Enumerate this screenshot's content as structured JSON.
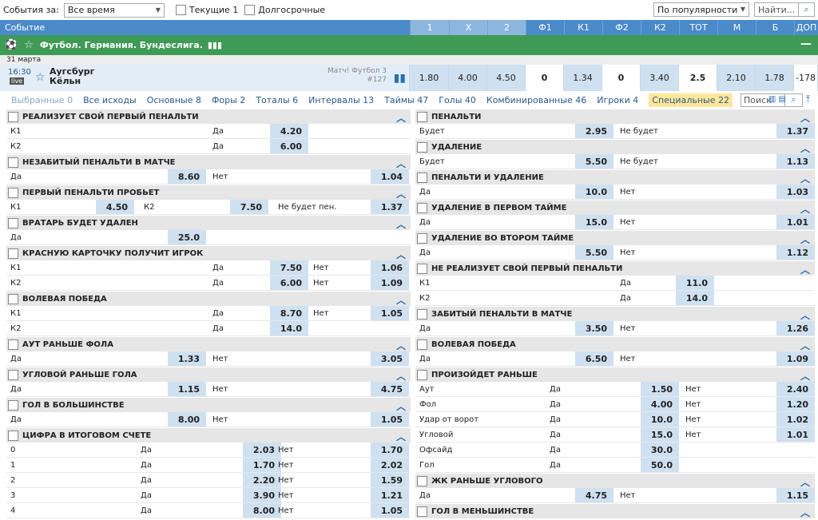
{
  "filter": {
    "label": "События за:",
    "period": "Все время",
    "current": "Текущие 1",
    "longterm": "Долгосрочные",
    "sort": "По популярности",
    "search_placeholder": "Найти..."
  },
  "header": {
    "event": "Событие",
    "cols": [
      "1",
      "X",
      "2",
      "Ф1",
      "К1",
      "Ф2",
      "К2",
      "ТОТ",
      "М",
      "Б",
      "ДОП"
    ]
  },
  "league": "Футбол. Германия. Бундеслига.",
  "date": "31 марта",
  "match": {
    "time": "16:30",
    "live": "live",
    "team1": "Аугсбург",
    "team2": "Кёльн",
    "info1": "Матч! Футбол 3",
    "info2": "#127",
    "odds": [
      "1.80",
      "4.00",
      "4.50",
      "0",
      "1.34",
      "0",
      "3.40",
      "2.5",
      "2.10",
      "1.78",
      "-178"
    ]
  },
  "tabs": [
    "Выбранные 0",
    "Все исходы",
    "Основные 8",
    "Форы 2",
    "Тоталы 6",
    "Интервалы 13",
    "Таймы 47",
    "Голы 40",
    "Комбинированные 46",
    "Игроки 4",
    "Специальные 22"
  ],
  "tab_search": "Поиск по",
  "left": [
    {
      "title": "РЕАЛИЗУЕТ СВОЙ ПЕРВЫЙ ПЕНАЛЬТИ",
      "rows": [
        [
          "К1",
          "Да",
          "4.20"
        ],
        [
          "К2",
          "Да",
          "6.00"
        ]
      ],
      "t": "a"
    },
    {
      "title": "НЕЗАБИТЫЙ ПЕНАЛЬТИ В МАТЧЕ",
      "rows": [
        [
          "Да",
          "8.60",
          "Нет",
          "1.04"
        ]
      ],
      "t": "b"
    },
    {
      "title": "ПЕРВЫЙ ПЕНАЛЬТИ ПРОБЬЕТ",
      "rows": [
        [
          "К1",
          "4.50",
          "К2",
          "7.50",
          "Не будет пен.",
          "1.37"
        ]
      ],
      "t": "c"
    },
    {
      "title": "ВРАТАРЬ БУДЕТ УДАЛЕН",
      "rows": [
        [
          "Да",
          "25.0"
        ]
      ],
      "t": "d"
    },
    {
      "title": "КРАСНУЮ КАРТОЧКУ ПОЛУЧИТ ИГРОК",
      "rows": [
        [
          "К1",
          "Да",
          "7.50",
          "Нет",
          "1.06"
        ],
        [
          "К2",
          "Да",
          "6.00",
          "Нет",
          "1.09"
        ]
      ],
      "t": "e"
    },
    {
      "title": "ВОЛЕВАЯ ПОБЕДА",
      "rows": [
        [
          "К1",
          "Да",
          "8.70",
          "Нет",
          "1.05"
        ],
        [
          "К2",
          "Да",
          "14.0"
        ]
      ],
      "t": "e"
    },
    {
      "title": "АУТ РАНЬШЕ ФОЛА",
      "rows": [
        [
          "Да",
          "1.33",
          "Нет",
          "3.05"
        ]
      ],
      "t": "b"
    },
    {
      "title": "УГЛОВОЙ РАНЬШЕ ГОЛА",
      "rows": [
        [
          "Да",
          "1.15",
          "Нет",
          "4.75"
        ]
      ],
      "t": "b"
    },
    {
      "title": "ГОЛ В БОЛЬШИНСТВЕ",
      "rows": [
        [
          "Да",
          "8.00",
          "Нет",
          "1.05"
        ]
      ],
      "t": "b"
    },
    {
      "title": "ЦИФРА В ИТОГОВОМ СЧЕТЕ",
      "rows": [
        [
          "0",
          "Да",
          "2.03",
          "Нет",
          "1.70"
        ],
        [
          "1",
          "Да",
          "1.70",
          "Нет",
          "2.02"
        ],
        [
          "2",
          "Да",
          "2.20",
          "Нет",
          "1.59"
        ],
        [
          "3",
          "Да",
          "3.90",
          "Нет",
          "1.21"
        ],
        [
          "4",
          "Да",
          "8.00",
          "Нет",
          "1.05"
        ]
      ],
      "t": "f"
    }
  ],
  "right": [
    {
      "title": "ПЕНАЛЬТИ",
      "rows": [
        [
          "Будет",
          "2.95",
          "Не будет",
          "1.37"
        ]
      ],
      "t": "b"
    },
    {
      "title": "УДАЛЕНИЕ",
      "rows": [
        [
          "Будет",
          "5.50",
          "Не будет",
          "1.13"
        ]
      ],
      "t": "b"
    },
    {
      "title": "ПЕНАЛЬТИ И УДАЛЕНИЕ",
      "rows": [
        [
          "Да",
          "10.0",
          "Нет",
          "1.03"
        ]
      ],
      "t": "b"
    },
    {
      "title": "УДАЛЕНИЕ В ПЕРВОМ ТАЙМЕ",
      "rows": [
        [
          "Да",
          "15.0",
          "Нет",
          "1.01"
        ]
      ],
      "t": "b"
    },
    {
      "title": "УДАЛЕНИЕ ВО ВТОРОМ ТАЙМЕ",
      "rows": [
        [
          "Да",
          "5.50",
          "Нет",
          "1.12"
        ]
      ],
      "t": "b"
    },
    {
      "title": "НЕ РЕАЛИЗУЕТ СВОЙ ПЕРВЫЙ ПЕНАЛЬТИ",
      "rows": [
        [
          "К1",
          "Да",
          "11.0"
        ],
        [
          "К2",
          "Да",
          "14.0"
        ]
      ],
      "t": "g"
    },
    {
      "title": "ЗАБИТЫЙ ПЕНАЛЬТИ В МАТЧЕ",
      "rows": [
        [
          "Да",
          "3.50",
          "Нет",
          "1.26"
        ]
      ],
      "t": "b"
    },
    {
      "title": "ВОЛЕВАЯ ПОБЕДА",
      "rows": [
        [
          "Да",
          "6.50",
          "Нет",
          "1.09"
        ]
      ],
      "t": "b"
    },
    {
      "title": "ПРОИЗОЙДЕТ РАНЬШЕ",
      "rows": [
        [
          "Аут",
          "Да",
          "1.50",
          "Нет",
          "2.40"
        ],
        [
          "Фол",
          "Да",
          "4.00",
          "Нет",
          "1.20"
        ],
        [
          "Удар от ворот",
          "Да",
          "10.0",
          "Нет",
          "1.02"
        ],
        [
          "Угловой",
          "Да",
          "15.0",
          "Нет",
          "1.01"
        ],
        [
          "Офсайд",
          "Да",
          "30.0"
        ],
        [
          "Гол",
          "Да",
          "50.0"
        ]
      ],
      "t": "h"
    },
    {
      "title": "ЖК РАНЬШЕ УГЛОВОГО",
      "rows": [
        [
          "Да",
          "4.75",
          "Нет",
          "1.15"
        ]
      ],
      "t": "b"
    },
    {
      "title": "ГОЛ В МЕНЬШИНСТВЕ",
      "rows": [],
      "t": "b"
    }
  ]
}
